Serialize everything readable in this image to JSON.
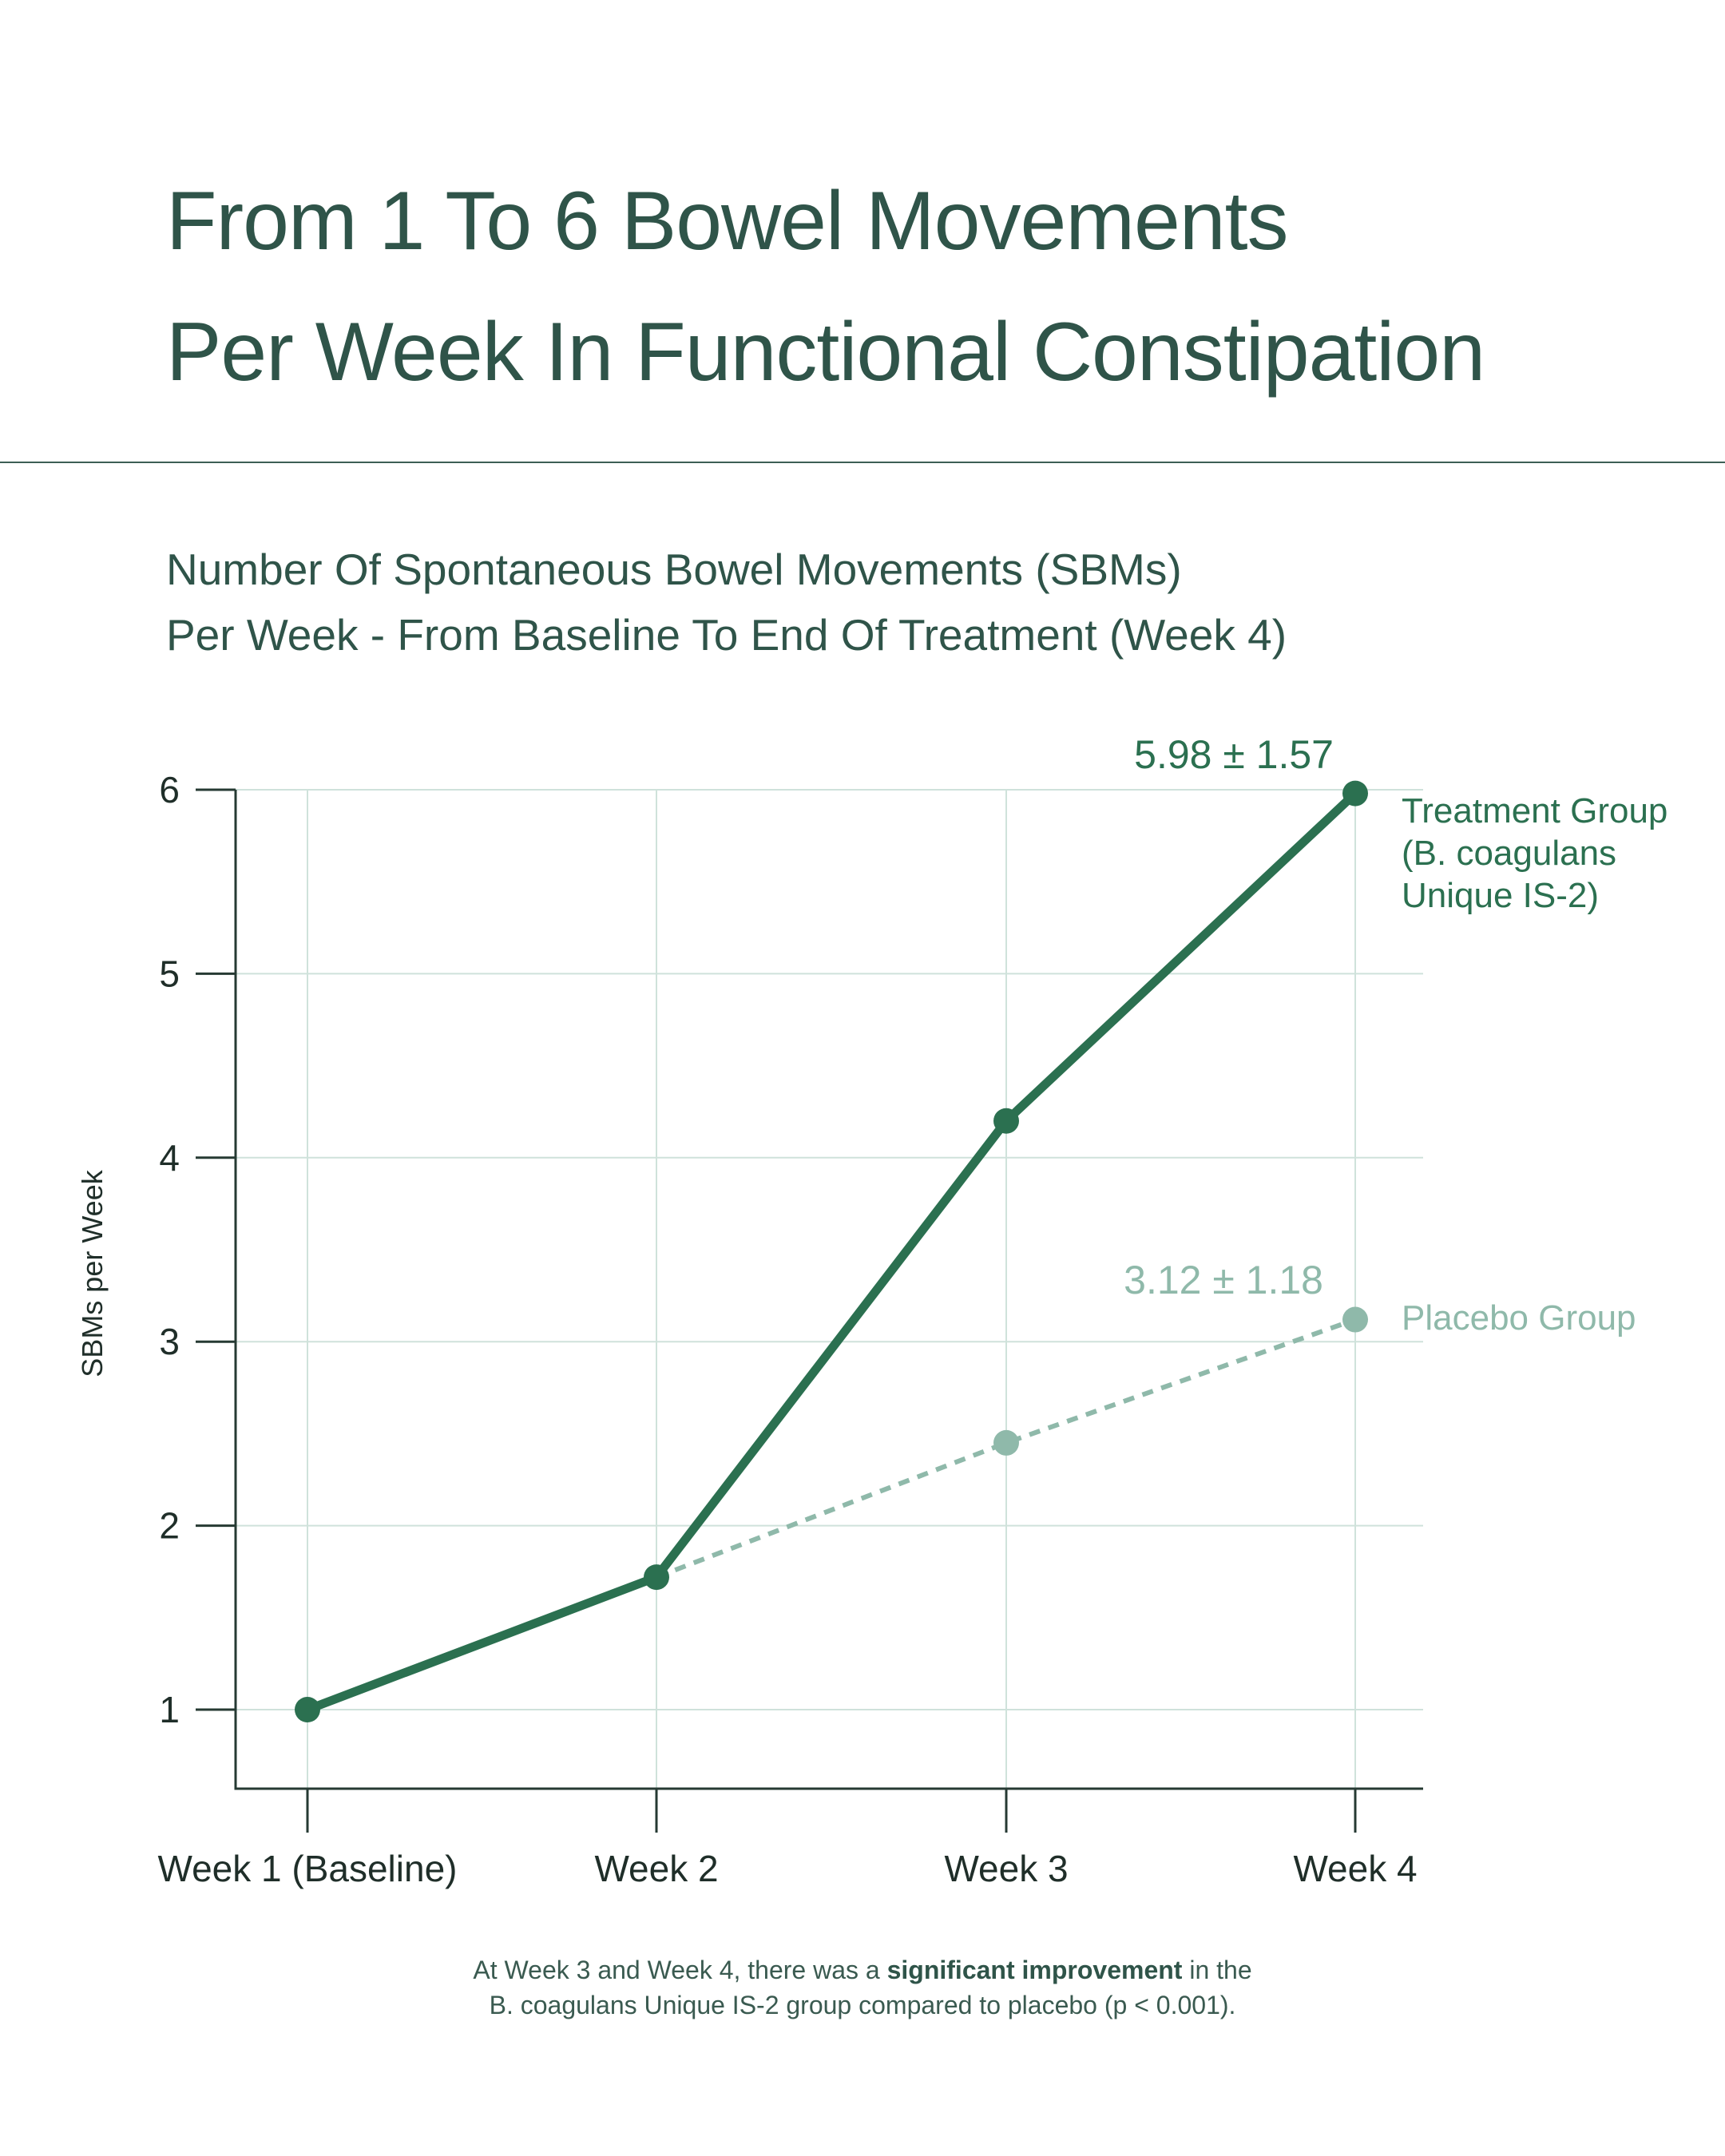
{
  "title": {
    "line1": "From 1 To 6 Bowel Movements",
    "line2": "Per Week In Functional Constipation"
  },
  "chart_data": {
    "type": "line",
    "title": "Number Of Spontaneous Bowel Movements (SBMs)",
    "subtitle": "Per Week - From Baseline To End Of Treatment (Week 4)",
    "ylabel": "SBMs per Week",
    "xlabel": "",
    "categories": [
      "Week 1 (Baseline)",
      "Week 2",
      "Week 3",
      "Week 4"
    ],
    "yticks": [
      1,
      2,
      3,
      4,
      5,
      6
    ],
    "ylim": [
      0.57,
      6
    ],
    "grid": true,
    "series": [
      {
        "name_line1": "Treatment Group",
        "name_line2": "(B. coagulans",
        "name_line3": "Unique IS-2)",
        "values": [
          1.0,
          1.72,
          4.2,
          5.98
        ],
        "end_label": "5.98 ± 1.57",
        "style": "solid",
        "color": "#2b7050"
      },
      {
        "name_line1": "Placebo Group",
        "values": [
          null,
          1.72,
          2.45,
          3.12
        ],
        "end_label": "3.12 ± 1.18",
        "style": "dashed",
        "color": "#8fb9aa"
      }
    ],
    "colors": {
      "axis": "#263a33",
      "grid": "#cfe2db",
      "text": "#1f2e29"
    }
  },
  "footnote": {
    "line1_before": "At Week 3 and Week 4, there was a ",
    "line1_bold": "significant improvement",
    "line1_after": " in the",
    "line2": "B. coagulans Unique IS-2 group compared to placebo (p < 0.001)."
  }
}
